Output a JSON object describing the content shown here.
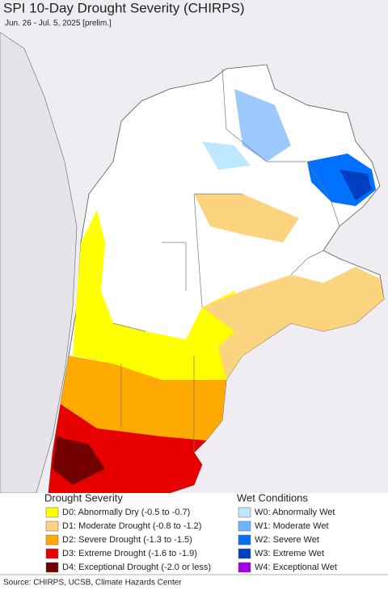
{
  "title": "SPI 10-Day Drought Severity (CHIRPS)",
  "subtitle": "Jun. 26 - Jul. 5, 2025 [prelim.]",
  "legend": {
    "drought": {
      "title": "Drought Severity",
      "items": [
        {
          "label": "D0: Abnormally Dry (-0.5 to -0.7)",
          "color": "#ffff00"
        },
        {
          "label": "D1: Moderate Drought (-0.8 to -1.2)",
          "color": "#fcd37f"
        },
        {
          "label": "D2: Severe Drought (-1.3 to -1.5)",
          "color": "#ffaa00"
        },
        {
          "label": "D3: Extreme Drought (-1.6 to -1.9)",
          "color": "#e60000"
        },
        {
          "label": "D4: Exceptional Drought (-2.0 or less)",
          "color": "#730000"
        }
      ]
    },
    "wet": {
      "title": "Wet Conditions",
      "items": [
        {
          "label": "W0: Abnormally Wet",
          "color": "#bee8ff"
        },
        {
          "label": "W1: Moderate Wet",
          "color": "#73b2ff"
        },
        {
          "label": "W2: Severe Wet",
          "color": "#0070ff"
        },
        {
          "label": "W3: Extreme Wet",
          "color": "#0040c0"
        },
        {
          "label": "W4: Exceptional Wet",
          "color": "#a000e6"
        }
      ]
    }
  },
  "source": "Source: CHIRPS, UCSB, Climate Hazards Center"
}
